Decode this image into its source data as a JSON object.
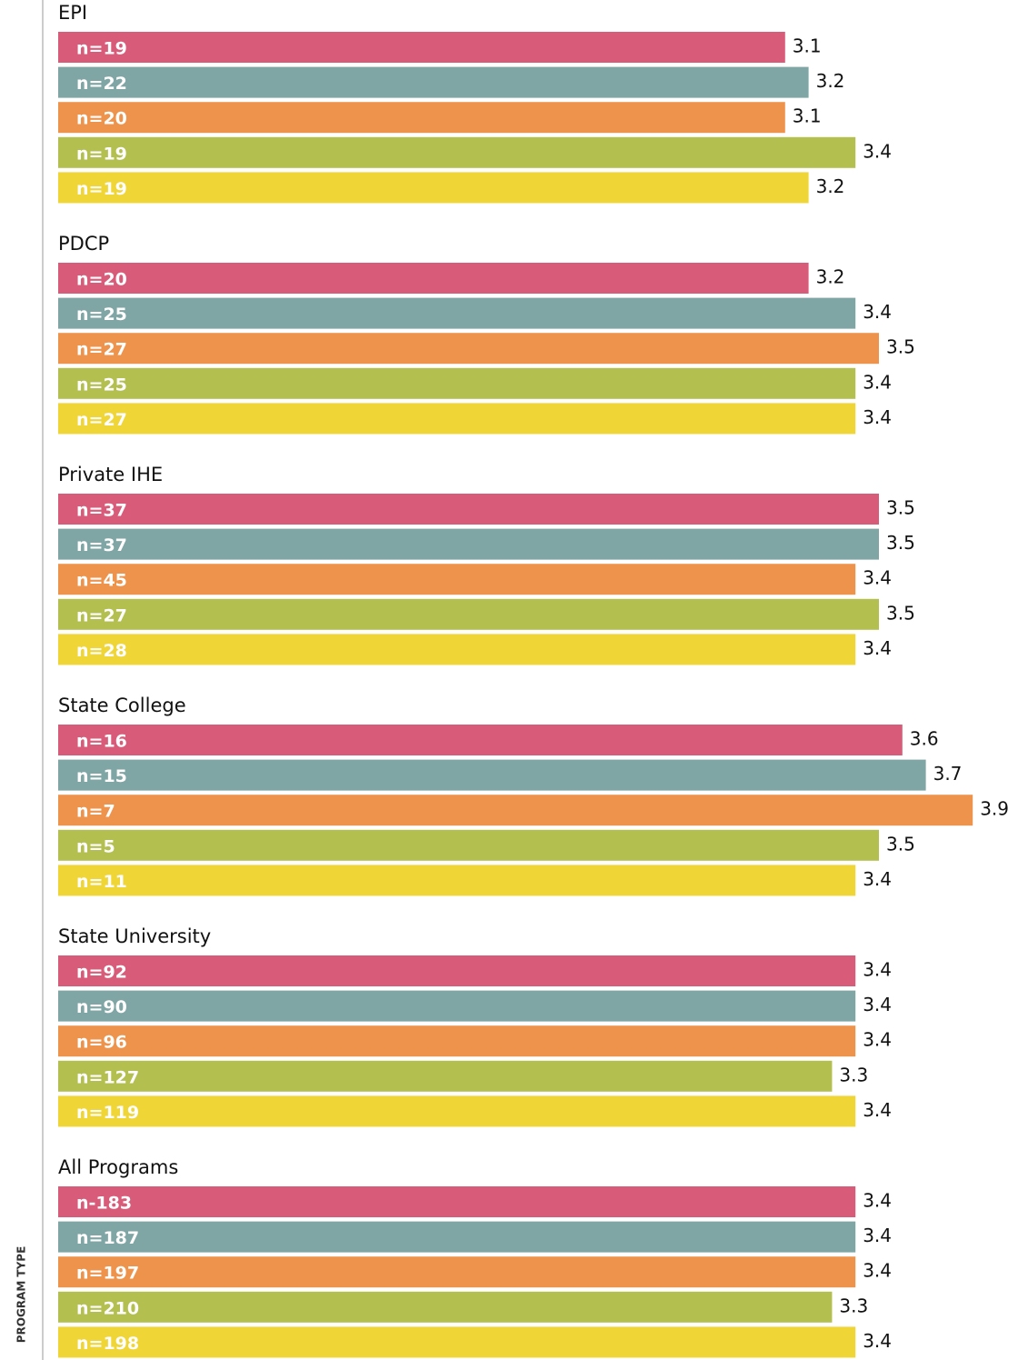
{
  "chart_data": {
    "type": "bar",
    "orientation": "horizontal",
    "ylabel": "PROGRAM TYPE",
    "colors": [
      "#d95b7a",
      "#7fa5a5",
      "#ee934c",
      "#b3bf4e",
      "#efd535"
    ],
    "groups": [
      {
        "name": "EPI",
        "labels": [
          "n=19",
          "n=22",
          "n=20",
          "n=19",
          "n=19"
        ],
        "values": [
          3.1,
          3.2,
          3.1,
          3.4,
          3.2
        ]
      },
      {
        "name": "PDCP",
        "labels": [
          "n=20",
          "n=25",
          "n=27",
          "n=25",
          "n=27"
        ],
        "values": [
          3.2,
          3.4,
          3.5,
          3.4,
          3.4
        ]
      },
      {
        "name": "Private IHE",
        "labels": [
          "n=37",
          "n=37",
          "n=45",
          "n=27",
          "n=28"
        ],
        "values": [
          3.5,
          3.5,
          3.4,
          3.5,
          3.4
        ]
      },
      {
        "name": "State College",
        "labels": [
          "n=16",
          "n=15",
          "n=7",
          "n=5",
          "n=11"
        ],
        "values": [
          3.6,
          3.7,
          3.9,
          3.5,
          3.4
        ]
      },
      {
        "name": "State University",
        "labels": [
          "n=92",
          "n=90",
          "n=96",
          "n=127",
          "n=119"
        ],
        "values": [
          3.4,
          3.4,
          3.4,
          3.3,
          3.4
        ]
      },
      {
        "name": "All Programs",
        "labels": [
          "n-183",
          "n=187",
          "n=197",
          "n=210",
          "n=198"
        ],
        "values": [
          3.4,
          3.4,
          3.4,
          3.3,
          3.4
        ]
      }
    ]
  }
}
